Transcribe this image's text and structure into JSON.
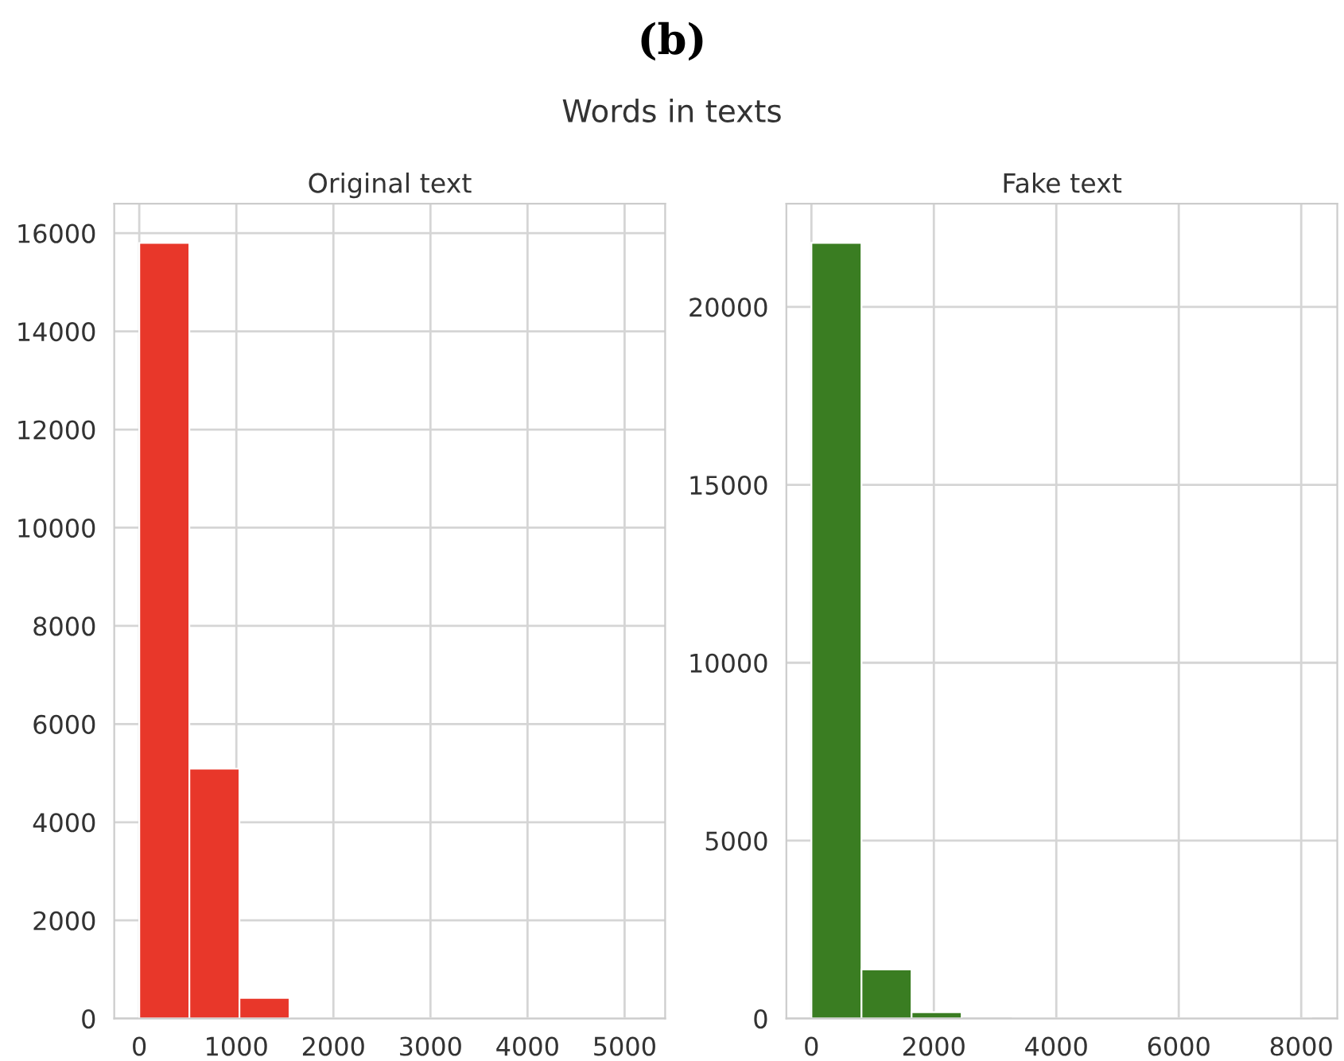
{
  "chart_data": [
    {
      "type": "histogram",
      "title": "Original text",
      "annotations": [
        "(b)",
        "Words in texts"
      ],
      "bins": [
        0,
        516,
        1032,
        1548,
        2064,
        2580,
        3096,
        3612,
        4128,
        4644,
        5160
      ],
      "values": [
        15800,
        5090,
        420,
        0,
        0,
        0,
        0,
        0,
        0,
        0
      ],
      "color": "#e8372a",
      "xlim": [
        -258,
        5418
      ],
      "ylim": [
        0,
        16600
      ],
      "xticks": [
        0,
        1000,
        2000,
        3000,
        4000,
        5000
      ],
      "yticks": [
        0,
        2000,
        4000,
        6000,
        8000,
        10000,
        12000,
        14000,
        16000
      ],
      "grid": true
    },
    {
      "type": "histogram",
      "title": "Fake text",
      "bins": [
        0,
        818,
        1636,
        2454,
        3272,
        4090,
        4908,
        5726,
        6544,
        7362,
        8180
      ],
      "values": [
        21800,
        1380,
        180,
        null,
        0,
        0,
        0,
        0,
        0,
        0
      ],
      "color": "#3a7d22",
      "xlim": [
        -409,
        8589
      ],
      "ylim": [
        0,
        22900
      ],
      "xticks": [
        0,
        2000,
        4000,
        6000,
        8000
      ],
      "yticks": [
        0,
        5000,
        10000,
        15000,
        20000
      ],
      "grid": true
    }
  ]
}
